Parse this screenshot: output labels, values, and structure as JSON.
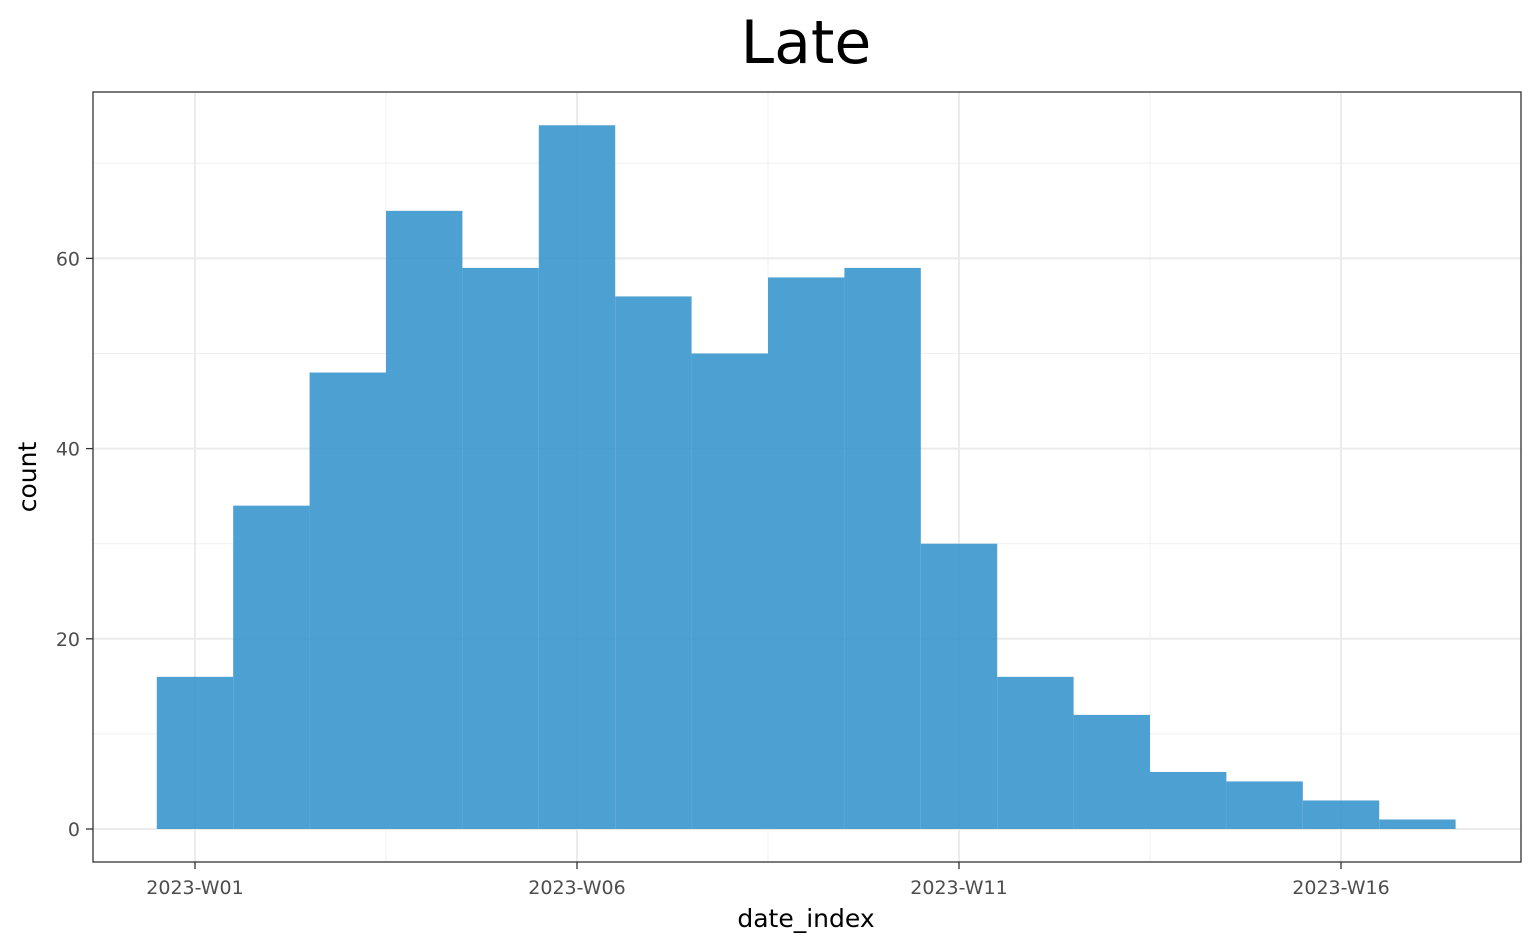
{
  "chart_data": {
    "type": "bar",
    "title": "Late",
    "xlabel": "date_index",
    "ylabel": "count",
    "x_ticks": [
      "2023-W01",
      "2023-W06",
      "2023-W11",
      "2023-W16"
    ],
    "y_ticks": [
      0,
      20,
      40,
      60
    ],
    "ylim": [
      0,
      74
    ],
    "grid": true,
    "legend": "none",
    "bar_color": "#3A96CD",
    "bins": [
      {
        "week": 1,
        "value": 16
      },
      {
        "week": 2,
        "value": 34
      },
      {
        "week": 3,
        "value": 48
      },
      {
        "week": 4,
        "value": 65
      },
      {
        "week": 5,
        "value": 59
      },
      {
        "week": 6,
        "value": 74
      },
      {
        "week": 7,
        "value": 56
      },
      {
        "week": 8,
        "value": 50
      },
      {
        "week": 9,
        "value": 58
      },
      {
        "week": 10,
        "value": 59
      },
      {
        "week": 11,
        "value": 30
      },
      {
        "week": 12,
        "value": 16
      },
      {
        "week": 13,
        "value": 12
      },
      {
        "week": 14,
        "value": 6
      },
      {
        "week": 15,
        "value": 5
      },
      {
        "week": 16,
        "value": 3
      },
      {
        "week": 17,
        "value": 1
      }
    ]
  }
}
